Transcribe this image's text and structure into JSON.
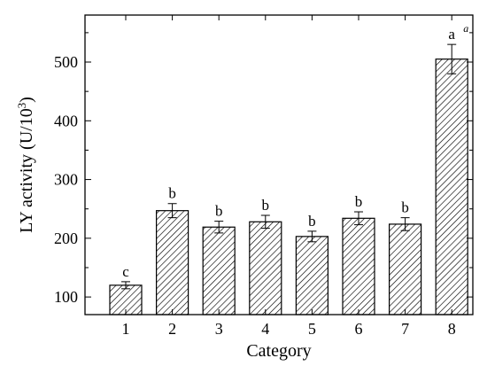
{
  "chart_data": {
    "type": "bar",
    "categories": [
      "1",
      "2",
      "3",
      "4",
      "5",
      "6",
      "7",
      "8"
    ],
    "values": [
      120,
      247,
      219,
      228,
      203,
      234,
      224,
      505
    ],
    "errors": [
      6,
      12,
      10,
      11,
      9,
      11,
      11,
      25
    ],
    "significance": [
      "c",
      "b",
      "b",
      "b",
      "b",
      "b",
      "b",
      "a"
    ],
    "superscripts": [
      "",
      "",
      "",
      "",
      "",
      "",
      "",
      "a"
    ],
    "xlabel": "Category",
    "ylabel": "LY activity (U/10",
    "ylabel_sup": "3",
    "ylabel_end": ")",
    "ylim": [
      70,
      580
    ],
    "yticks": [
      100,
      200,
      300,
      400,
      500
    ],
    "bar_fill": "hatched",
    "bar_color": "#000000",
    "grid": false
  }
}
